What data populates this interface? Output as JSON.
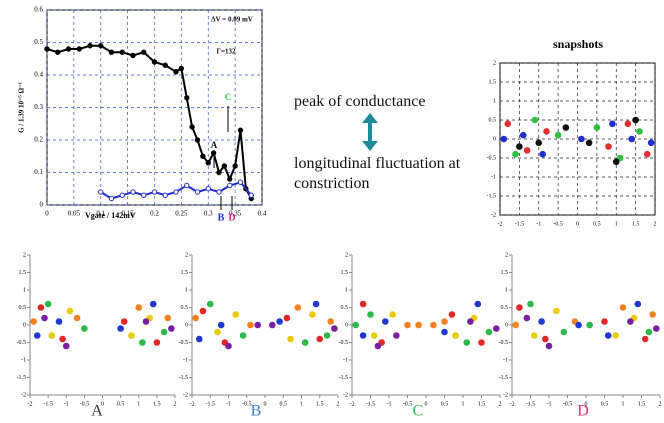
{
  "notes": [
    "peak of conductance",
    "longitudinal fluctuation at constriction"
  ],
  "chart_data": [
    {
      "type": "line",
      "xlabel": "Vgate / 142mV",
      "ylabel": "G / 1.39 10⁻⁵ Ω⁻¹",
      "xlim": [
        0,
        0.4
      ],
      "xticks": [
        0,
        0.05,
        0.1,
        0.15,
        0.2,
        0.25,
        0.3,
        0.35,
        0.4
      ],
      "ylim": [
        0,
        0.6
      ],
      "yticks": [
        0,
        0.1,
        0.2,
        0.3,
        0.4,
        0.5,
        0.6
      ],
      "grid": true,
      "grid_color": "#3050d0",
      "annotations": [
        {
          "text": "ΔV = 0.09 mV",
          "color": "#111111"
        },
        {
          "text": "Γ=132",
          "color": "#111111"
        },
        {
          "text": "A",
          "color": "#111111"
        },
        {
          "text": "C",
          "color": "#2cc84a"
        },
        {
          "text": "B",
          "color": "#2030d0"
        },
        {
          "text": "D",
          "color": "#e0208a"
        }
      ],
      "series": [
        {
          "color": "#000000",
          "marker": "filled",
          "x": [
            0,
            0.02,
            0.04,
            0.06,
            0.08,
            0.1,
            0.12,
            0.14,
            0.16,
            0.18,
            0.2,
            0.22,
            0.24,
            0.25,
            0.26,
            0.27,
            0.28,
            0.29,
            0.3,
            0.31,
            0.32,
            0.33,
            0.34,
            0.35,
            0.36,
            0.37,
            0.38
          ],
          "values": [
            0.48,
            0.47,
            0.48,
            0.48,
            0.49,
            0.49,
            0.47,
            0.47,
            0.46,
            0.47,
            0.44,
            0.43,
            0.41,
            0.42,
            0.33,
            0.24,
            0.2,
            0.15,
            0.13,
            0.16,
            0.1,
            0.12,
            0.08,
            0.12,
            0.23,
            0.05,
            0.02
          ]
        },
        {
          "color": "#2030c8",
          "marker": "open",
          "x": [
            0.1,
            0.12,
            0.14,
            0.16,
            0.18,
            0.2,
            0.22,
            0.24,
            0.26,
            0.28,
            0.3,
            0.32,
            0.34,
            0.36,
            0.38
          ],
          "values": [
            0.04,
            0.02,
            0.03,
            0.04,
            0.03,
            0.04,
            0.03,
            0.04,
            0.06,
            0.04,
            0.05,
            0.04,
            0.06,
            0.07,
            0.03
          ]
        }
      ]
    },
    {
      "type": "scatter",
      "title": "snapshots",
      "grid": true,
      "grid_color": "#222222",
      "xlim": [
        -2,
        2
      ],
      "xticks": [
        -2,
        -1.5,
        -1,
        -0.5,
        0,
        0.5,
        1,
        1.5,
        2
      ],
      "ylim": [
        -2,
        2
      ],
      "yticks": [
        -2,
        -1.5,
        -1,
        -0.5,
        0,
        0.5,
        1,
        1.5,
        2
      ],
      "series": [
        {
          "color": "#e03030",
          "x": [
            -1.8,
            -1.3,
            -0.8,
            0.8,
            1.3,
            1.8
          ],
          "values": [
            0.4,
            -0.3,
            0.2,
            -0.2,
            0.4,
            -0.4
          ]
        },
        {
          "color": "#30c040",
          "x": [
            -1.6,
            -1.1,
            -0.5,
            0.5,
            1.1,
            1.6
          ],
          "values": [
            -0.4,
            0.5,
            0.1,
            0.3,
            -0.5,
            0.2
          ]
        },
        {
          "color": "#2030d0",
          "x": [
            -1.9,
            -1.4,
            -0.9,
            0.1,
            0.9,
            1.4,
            1.9
          ],
          "values": [
            0,
            0.1,
            -0.4,
            0,
            0.4,
            0,
            -0.1
          ]
        },
        {
          "color": "#111111",
          "x": [
            -1.5,
            -1,
            -0.3,
            0.3,
            1,
            1.5
          ],
          "values": [
            -0.2,
            -0.1,
            0.3,
            -0.1,
            -0.6,
            0.5
          ]
        }
      ]
    },
    {
      "type": "scatter",
      "title": "A",
      "title_color": "#333333",
      "xlim": [
        -2,
        2
      ],
      "xticks": [
        -2,
        -1.5,
        -1,
        -0.5,
        0,
        0.5,
        1,
        1.5,
        2
      ],
      "ylim": [
        -2,
        2
      ],
      "yticks": [
        -2,
        -1.5,
        -1,
        -0.5,
        0,
        0.5,
        1,
        1.5,
        2
      ],
      "series": [
        {
          "color": "#e02828",
          "x": [
            -1.7,
            -1.1,
            0.6,
            1.5
          ],
          "values": [
            0.5,
            -0.4,
            0.1,
            -0.5
          ]
        },
        {
          "color": "#f58220",
          "x": [
            -1.9,
            -0.7,
            1,
            1.8
          ],
          "values": [
            0.1,
            0.2,
            0.5,
            0.2
          ]
        },
        {
          "color": "#e8cc00",
          "x": [
            -1.4,
            -0.9,
            0.8,
            1.3
          ],
          "values": [
            -0.3,
            0.4,
            -0.3,
            0.2
          ]
        },
        {
          "color": "#2cb84a",
          "x": [
            -1.5,
            -0.5,
            1.1,
            1.7
          ],
          "values": [
            0.6,
            -0.1,
            -0.5,
            -0.2
          ]
        },
        {
          "color": "#2038d0",
          "x": [
            -1.2,
            -1.8,
            0.5,
            1.4
          ],
          "values": [
            0.1,
            -0.3,
            -0.1,
            0.6
          ]
        },
        {
          "color": "#7a1fa2",
          "x": [
            -1,
            -1.6,
            1.2,
            1.9
          ],
          "values": [
            -0.6,
            0.2,
            0.1,
            -0.1
          ]
        }
      ]
    },
    {
      "type": "scatter",
      "title": "B",
      "title_color": "#3a80c8",
      "xlim": [
        -2,
        2
      ],
      "xticks": [
        -2,
        -1.5,
        -1,
        -0.5,
        0,
        0.5,
        1,
        1.5,
        2
      ],
      "ylim": [
        -2,
        2
      ],
      "yticks": [
        -2,
        -1.5,
        -1,
        -0.5,
        0,
        0.5,
        1,
        1.5,
        2
      ],
      "series": [
        {
          "color": "#e02828",
          "x": [
            -1.7,
            -1.1,
            0.6,
            1.5
          ],
          "values": [
            0.4,
            -0.5,
            0.2,
            -0.4
          ]
        },
        {
          "color": "#f58220",
          "x": [
            -1.9,
            -0.4,
            0.9,
            1.8
          ],
          "values": [
            0.2,
            0,
            0.5,
            0.1
          ]
        },
        {
          "color": "#e8cc00",
          "x": [
            -1.3,
            -0.8,
            0.7,
            1.3
          ],
          "values": [
            -0.2,
            0.3,
            -0.4,
            0.3
          ]
        },
        {
          "color": "#2cb84a",
          "x": [
            -1.5,
            -0.6,
            1.1,
            1.7
          ],
          "values": [
            0.6,
            -0.3,
            -0.5,
            -0.3
          ]
        },
        {
          "color": "#2038d0",
          "x": [
            -1.2,
            -1.8,
            0.4,
            1.4
          ],
          "values": [
            0,
            -0.4,
            0.1,
            0.6
          ]
        },
        {
          "color": "#7a1fa2",
          "x": [
            -1,
            -0.2,
            0.2,
            1.9
          ],
          "values": [
            -0.6,
            0,
            0,
            -0.1
          ]
        }
      ]
    },
    {
      "type": "scatter",
      "title": "C",
      "title_color": "#2cb84a",
      "xlim": [
        -2,
        2
      ],
      "xticks": [
        -2,
        -1.5,
        -1,
        -0.5,
        0,
        0.5,
        1,
        1.5,
        2
      ],
      "ylim": [
        -2,
        2
      ],
      "yticks": [
        -2,
        -1.5,
        -1,
        -0.5,
        0,
        0.5,
        1,
        1.5,
        2
      ],
      "series": [
        {
          "color": "#e02828",
          "x": [
            -1.7,
            -1.2,
            0.7,
            1.5
          ],
          "values": [
            0.6,
            -0.5,
            0.3,
            -0.5
          ]
        },
        {
          "color": "#f58220",
          "x": [
            -0.5,
            -0.2,
            0.2,
            0.5
          ],
          "values": [
            0,
            0,
            0,
            0.1
          ]
        },
        {
          "color": "#e8cc00",
          "x": [
            -1.4,
            -0.9,
            0.8,
            1.3
          ],
          "values": [
            -0.3,
            0.3,
            -0.3,
            0.2
          ]
        },
        {
          "color": "#2cb84a",
          "x": [
            -1.5,
            -1.9,
            1.1,
            1.7
          ],
          "values": [
            0.3,
            0,
            -0.5,
            -0.2
          ]
        },
        {
          "color": "#2038d0",
          "x": [
            -1.1,
            -1.7,
            0.5,
            1.4
          ],
          "values": [
            0.1,
            -0.3,
            -0.2,
            0.6
          ]
        },
        {
          "color": "#7a1fa2",
          "x": [
            -1.3,
            -0.8,
            1.2,
            1.9
          ],
          "values": [
            -0.6,
            -0.3,
            0.1,
            -0.1
          ]
        }
      ]
    },
    {
      "type": "scatter",
      "title": "D",
      "title_color": "#e03068",
      "xlim": [
        -2,
        2
      ],
      "xticks": [
        -2,
        -1.5,
        -1,
        -0.5,
        0,
        0.5,
        1,
        1.5,
        2
      ],
      "ylim": [
        -2,
        2
      ],
      "yticks": [
        -2,
        -1.5,
        -1,
        -0.5,
        0,
        0.5,
        1,
        1.5,
        2
      ],
      "series": [
        {
          "color": "#e02828",
          "x": [
            -1.8,
            -1.1,
            0.5,
            1.6
          ],
          "values": [
            0.5,
            -0.4,
            0.1,
            -0.4
          ]
        },
        {
          "color": "#f58220",
          "x": [
            -1.9,
            -0.3,
            1,
            1.8
          ],
          "values": [
            0,
            0.1,
            0.5,
            0.3
          ]
        },
        {
          "color": "#e8cc00",
          "x": [
            -1.4,
            -0.8,
            0.8,
            1.3
          ],
          "values": [
            -0.3,
            0.4,
            -0.3,
            0.2
          ]
        },
        {
          "color": "#2cb84a",
          "x": [
            -1.5,
            -0.6,
            0.1,
            1.7
          ],
          "values": [
            0.6,
            -0.2,
            0,
            -0.2
          ]
        },
        {
          "color": "#2038d0",
          "x": [
            -1.2,
            -0.2,
            0.6,
            1.4
          ],
          "values": [
            0.1,
            0,
            -0.3,
            0.6
          ]
        },
        {
          "color": "#7a1fa2",
          "x": [
            -1,
            -1.6,
            1.2,
            1.9
          ],
          "values": [
            -0.6,
            0.2,
            0.1,
            -0.1
          ]
        }
      ]
    }
  ]
}
